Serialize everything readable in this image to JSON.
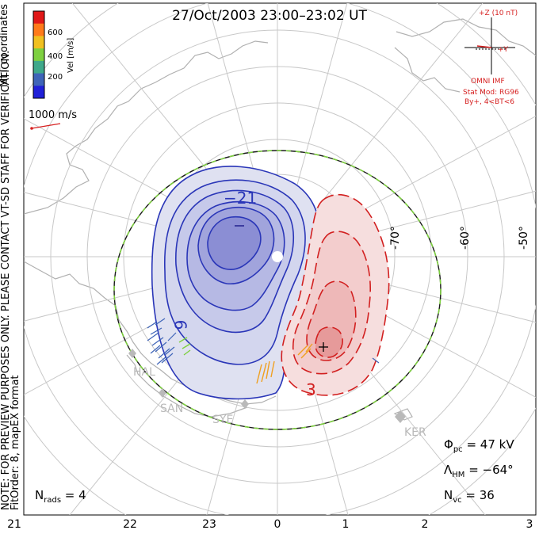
{
  "title": "27/Oct/2003 23:00–23:02 UT",
  "colorbar": {
    "label": "Vel [m/s]",
    "ticks": [
      "600",
      "400",
      "200"
    ],
    "colors": [
      "#e01818",
      "#ff7a1a",
      "#f0c020",
      "#7ed040",
      "#3fa88a",
      "#3e64b8",
      "#2020d8"
    ]
  },
  "side_notes": {
    "coordinates": "MLT coordinates",
    "note": "NOTE: FOR PREVIEW PURPOSES ONLY. PLEASE CONTACT VT-SD STAFF FOR VERIFICATION.",
    "fit": "FitOrder: 8, mapEX format"
  },
  "reference_vector": "1000 m/s",
  "imf": {
    "scale": "+Z (10 nT)",
    "y_label": "+Y",
    "source": "OMNI IMF",
    "model": "Stat Mod: RG96",
    "condition": "By+, 4<BT<6"
  },
  "contours": {
    "negative_label": "−21",
    "negative_mid": "9",
    "positive_label": "3",
    "min_marker": "−",
    "max_marker": "+"
  },
  "latitude_labels": [
    "-70°",
    "-60°",
    "-50°"
  ],
  "stations": [
    "HAL",
    "SAN",
    "SYE",
    "KER"
  ],
  "stats": {
    "phi_pc": "Φpc = 47 kV",
    "phi_main": "Φ",
    "phi_sub": "pc",
    "phi_val": " = 47 kV",
    "lambda_main": "Λ",
    "lambda_sub": "HM",
    "lambda_val": " = −64°",
    "nvc_main": "N",
    "nvc_sub": "vc",
    "nvc_val": " = 36",
    "nrads_main": "N",
    "nrads_sub": "rads",
    "nrads_val": " = 4"
  },
  "mlt_ticks": [
    "21",
    "22",
    "23",
    "0",
    "1",
    "2",
    "3"
  ]
}
